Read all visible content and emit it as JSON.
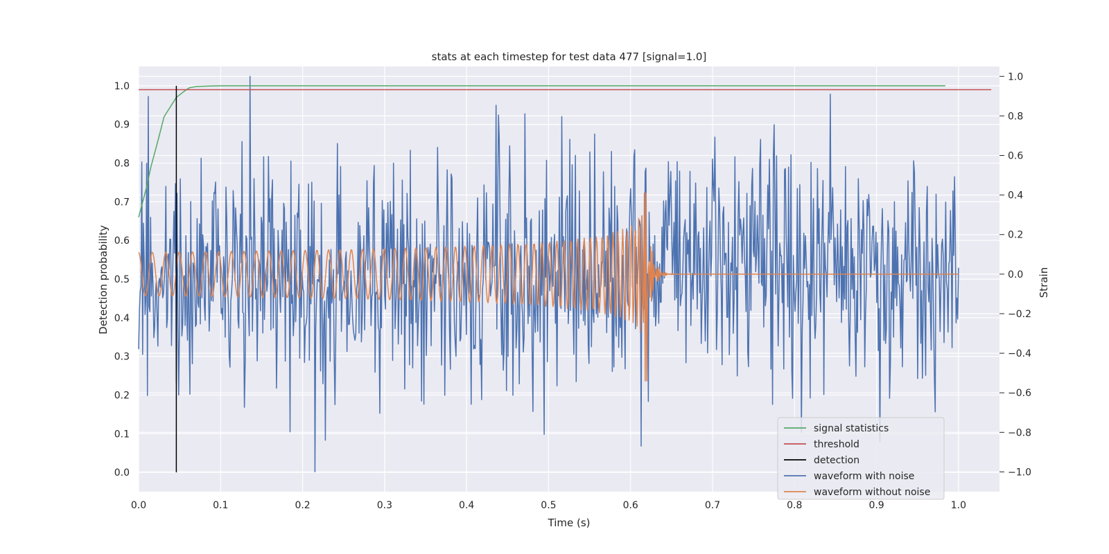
{
  "chart_data": {
    "type": "line",
    "title": "stats at each timestep for test data 477 [signal=1.0]",
    "xlabel": "Time (s)",
    "ylabel": "Detection probability",
    "y2label": "Strain",
    "xlim": [
      0.0,
      1.05
    ],
    "ylim": [
      -0.05,
      1.05
    ],
    "y2lim": [
      -1.1,
      1.05
    ],
    "xticks": [
      "0.0",
      "0.1",
      "0.2",
      "0.3",
      "0.4",
      "0.5",
      "0.6",
      "0.7",
      "0.8",
      "0.9",
      "1.0"
    ],
    "yticks": [
      "0.0",
      "0.1",
      "0.2",
      "0.3",
      "0.4",
      "0.5",
      "0.6",
      "0.7",
      "0.8",
      "0.9",
      "1.0"
    ],
    "y2ticks": [
      "−1.0",
      "−0.8",
      "−0.6",
      "−0.4",
      "−0.2",
      "0.0",
      "0.2",
      "0.4",
      "0.6",
      "0.8",
      "1.0"
    ],
    "grid": true,
    "legend_position": "lower-right",
    "legend": [
      {
        "label": "signal statistics",
        "color": "#55a868"
      },
      {
        "label": "threshold",
        "color": "#c44e52"
      },
      {
        "label": "detection",
        "color": "#000000"
      },
      {
        "label": "waveform with noise",
        "color": "#4c72b0"
      },
      {
        "label": "waveform without noise",
        "color": "#dd8452"
      }
    ],
    "series": [
      {
        "name": "signal statistics",
        "axis": "left",
        "color": "#55a868",
        "x": [
          0.0,
          0.005,
          0.01,
          0.015,
          0.02,
          0.025,
          0.031,
          0.037,
          0.046,
          0.055,
          0.062,
          0.07,
          0.08,
          0.1,
          0.2,
          0.5,
          0.984
        ],
        "y": [
          0.66,
          0.7,
          0.74,
          0.79,
          0.83,
          0.87,
          0.92,
          0.94,
          0.97,
          0.985,
          0.995,
          0.998,
          0.999,
          1.0,
          1.0,
          1.0,
          1.0
        ]
      },
      {
        "name": "threshold",
        "axis": "left",
        "color": "#c44e52",
        "x": [
          0.0,
          1.04
        ],
        "y": [
          0.99,
          0.99
        ]
      },
      {
        "name": "detection",
        "axis": "left",
        "color": "#000000",
        "x": [
          0.046,
          0.046
        ],
        "y": [
          0.0,
          1.0
        ]
      },
      {
        "name": "waveform with noise",
        "axis": "right",
        "color": "#4c72b0",
        "x_range": [
          0.0,
          1.0
        ],
        "samples": 1024,
        "y_extent": [
          -1.0,
          1.0
        ],
        "y_std": 0.3,
        "note_points": [
          {
            "x": 0.136,
            "y": 1.0
          },
          {
            "x": 0.215,
            "y": -1.0
          },
          {
            "x": 0.844,
            "y": 0.91
          },
          {
            "x": 0.613,
            "y": -0.87
          },
          {
            "x": 0.495,
            "y": -0.81
          }
        ]
      },
      {
        "name": "waveform without noise",
        "axis": "right",
        "color": "#dd8452",
        "x_range": [
          0.0,
          1.0
        ],
        "samples": 1024,
        "merger_time": 0.62,
        "peak_amplitude": [
          0.41,
          -0.54
        ],
        "ringdown_end": 0.66,
        "post_merger_value": 0.0
      }
    ]
  }
}
